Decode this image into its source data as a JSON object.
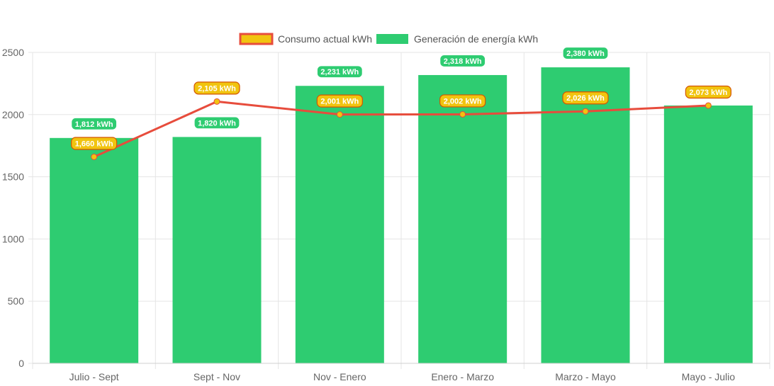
{
  "chart_data": {
    "type": "bar",
    "categories": [
      "Julio - Sept",
      "Sept - Nov",
      "Nov - Enero",
      "Enero - Marzo",
      "Marzo - Mayo",
      "Mayo - Julio"
    ],
    "series": [
      {
        "name": "Consumo actual kWh",
        "type": "line",
        "values": [
          1660,
          2105,
          2001,
          2002,
          2026,
          2073
        ],
        "labels": [
          "1,660 kWh",
          "2,105 kWh",
          "2,001 kWh",
          "2,002 kWh",
          "2,026 kWh",
          "2,073 kWh"
        ],
        "color": "#e74c3c",
        "fill": "#f1c40f"
      },
      {
        "name": "Generación de energía kWh",
        "type": "bar",
        "values": [
          1812,
          1820,
          2231,
          2318,
          2380,
          2073
        ],
        "labels": [
          "1,812 kWh",
          "1,820 kWh",
          "2,231 kWh",
          "2,318 kWh",
          "2,380 kWh",
          "2,073 kWh"
        ],
        "color": "#2ecc71"
      }
    ],
    "title": "",
    "xlabel": "",
    "ylabel": "",
    "ylim": [
      0,
      2500
    ],
    "yticks": [
      "0",
      "500",
      "1000",
      "1500",
      "2000",
      "2500"
    ],
    "grid": true,
    "legend_position": "top"
  }
}
